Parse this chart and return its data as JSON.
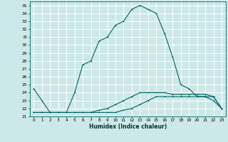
{
  "xlabel": "Humidex (Indice chaleur)",
  "ylabel": "",
  "bg_color": "#cde8e8",
  "line_color": "#006666",
  "grid_color": "#ffffff",
  "xlim": [
    -0.5,
    23.5
  ],
  "ylim": [
    21,
    35.5
  ],
  "xticks": [
    0,
    1,
    2,
    3,
    4,
    5,
    6,
    7,
    8,
    9,
    10,
    11,
    12,
    13,
    14,
    15,
    16,
    17,
    18,
    19,
    20,
    21,
    22,
    23
  ],
  "yticks": [
    21,
    22,
    23,
    24,
    25,
    26,
    27,
    28,
    29,
    30,
    31,
    32,
    33,
    34,
    35
  ],
  "curve1_x": [
    0,
    1,
    2,
    3,
    4,
    5,
    6,
    7,
    8,
    9,
    10,
    11,
    12,
    13,
    14,
    15,
    16,
    17,
    18,
    19,
    20,
    21,
    22,
    23
  ],
  "curve1_y": [
    24.5,
    23.0,
    21.5,
    21.5,
    21.5,
    24.0,
    27.5,
    28.0,
    30.5,
    31.0,
    32.5,
    33.0,
    34.5,
    35.0,
    34.5,
    34.0,
    31.5,
    28.5,
    25.0,
    24.5,
    23.5,
    23.5,
    23.0,
    22.0
  ],
  "curve2_x": [
    0,
    1,
    2,
    3,
    4,
    5,
    6,
    7,
    8,
    9,
    10,
    11,
    12,
    13,
    14,
    15,
    16,
    17,
    18,
    19,
    20,
    21,
    22,
    23
  ],
  "curve2_y": [
    21.5,
    21.5,
    21.5,
    21.5,
    21.5,
    21.5,
    21.5,
    21.5,
    21.8,
    22.0,
    22.5,
    23.0,
    23.5,
    24.0,
    24.0,
    24.0,
    24.0,
    23.8,
    23.8,
    23.8,
    23.8,
    23.8,
    23.5,
    22.0
  ],
  "curve3_x": [
    0,
    1,
    2,
    3,
    4,
    5,
    6,
    7,
    8,
    9,
    10,
    11,
    12,
    13,
    14,
    15,
    16,
    17,
    18,
    19,
    20,
    21,
    22,
    23
  ],
  "curve3_y": [
    21.5,
    21.5,
    21.5,
    21.5,
    21.5,
    21.5,
    21.5,
    21.5,
    21.5,
    21.5,
    21.5,
    21.8,
    22.0,
    22.5,
    23.0,
    23.5,
    23.5,
    23.5,
    23.5,
    23.5,
    23.5,
    23.5,
    23.5,
    22.0
  ]
}
